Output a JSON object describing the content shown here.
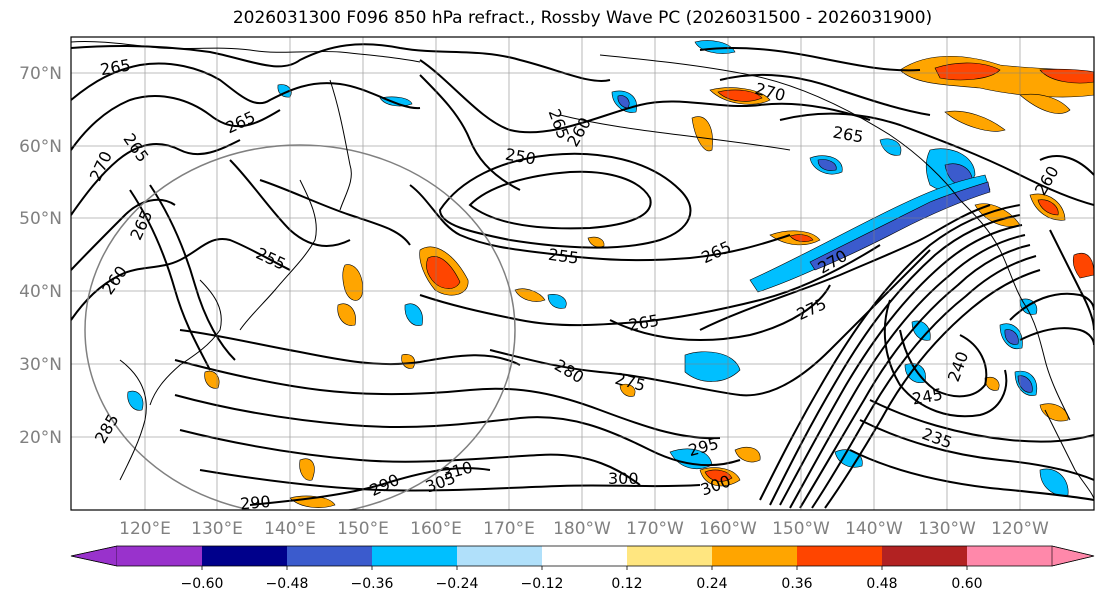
{
  "title": "2026031300 F096 850 hPa refract., Rossby Wave PC (2026031500 - 2026031900)",
  "lat_labels": [
    "70°N",
    "60°N",
    "50°N",
    "40°N",
    "30°N",
    "20°N"
  ],
  "lon_labels": [
    "120°E",
    "130°E",
    "140°E",
    "150°E",
    "160°E",
    "170°E",
    "180°W",
    "170°W",
    "160°W",
    "150°W",
    "140°W",
    "130°W",
    "120°W"
  ],
  "contour_labels": [
    "265",
    "265",
    "265",
    "270",
    "265",
    "260",
    "255",
    "250",
    "260",
    "265",
    "255",
    "275",
    "265",
    "270",
    "265",
    "270",
    "280",
    "275",
    "295",
    "300",
    "290",
    "290",
    "305",
    "310",
    "300",
    "240",
    "245",
    "235",
    "260",
    "265",
    "285"
  ],
  "colorbar": {
    "tick_labels": [
      "−0.60",
      "−0.48",
      "−0.36",
      "−0.24",
      "−0.12",
      "0.12",
      "0.24",
      "0.36",
      "0.48",
      "0.60"
    ],
    "colors": [
      "#9932cc",
      "#00008b",
      "#3b5bcd",
      "#00bfff",
      "#b0e0fa",
      "#ffffff",
      "#ffe680",
      "#ffa500",
      "#ff4500",
      "#b22222",
      "#ff88aa"
    ]
  }
}
